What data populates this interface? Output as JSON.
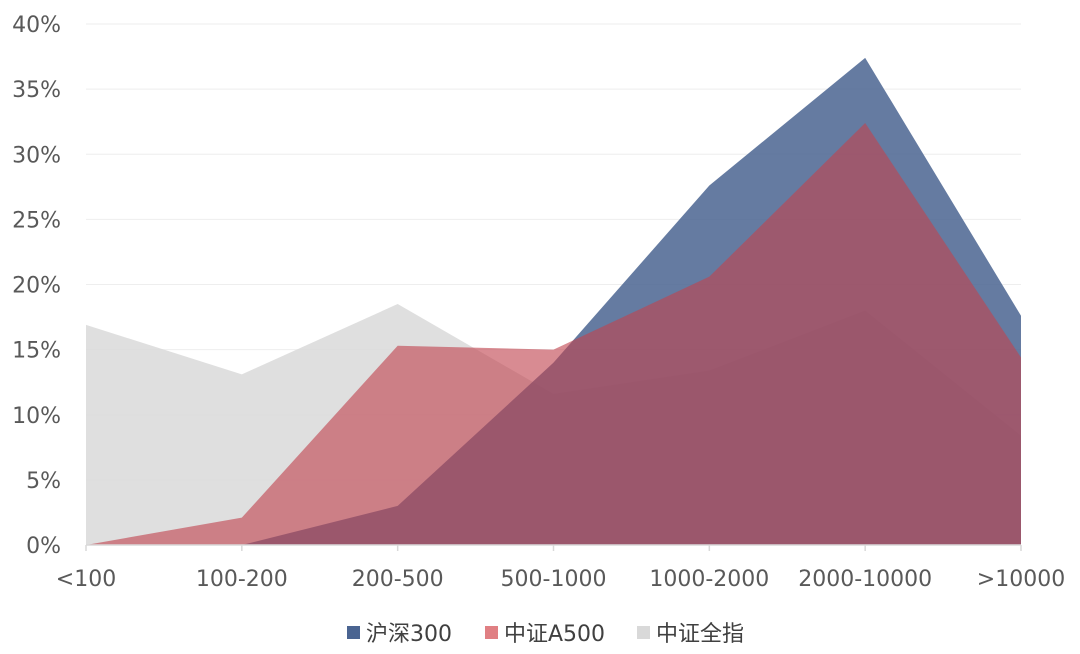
{
  "chart_data": {
    "type": "area",
    "title": "",
    "xlabel": "",
    "ylabel": "",
    "categories": [
      "<100",
      "100-200",
      "200-500",
      "500-1000",
      "1000-2000",
      "2000-10000",
      ">10000"
    ],
    "ylim": [
      0,
      40
    ],
    "y_ticks": [
      "0%",
      "5%",
      "10%",
      "15%",
      "20%",
      "25%",
      "30%",
      "35%",
      "40%"
    ],
    "grid": true,
    "legend_position": "bottom",
    "series": [
      {
        "name": "中证全指",
        "values": [
          16.9,
          13.1,
          18.5,
          11.6,
          13.4,
          18.0,
          8.4
        ],
        "color": "#d9d9d9",
        "opacity": 0.85
      },
      {
        "name": "沪深300",
        "values": [
          0.0,
          0.0,
          3.0,
          14.0,
          27.6,
          37.4,
          17.6
        ],
        "color": "#4a6491",
        "opacity": 0.85
      },
      {
        "name": "中证A500",
        "values": [
          0.0,
          2.1,
          15.3,
          15.0,
          20.6,
          32.4,
          14.4
        ],
        "color": "#c0444f",
        "opacity": 0.62
      }
    ],
    "legend": [
      {
        "name": "沪深300",
        "color": "#4a6491"
      },
      {
        "name": "中证A500",
        "color": "#e07f83"
      },
      {
        "name": "中证全指",
        "color": "#d9d9d9"
      }
    ]
  }
}
